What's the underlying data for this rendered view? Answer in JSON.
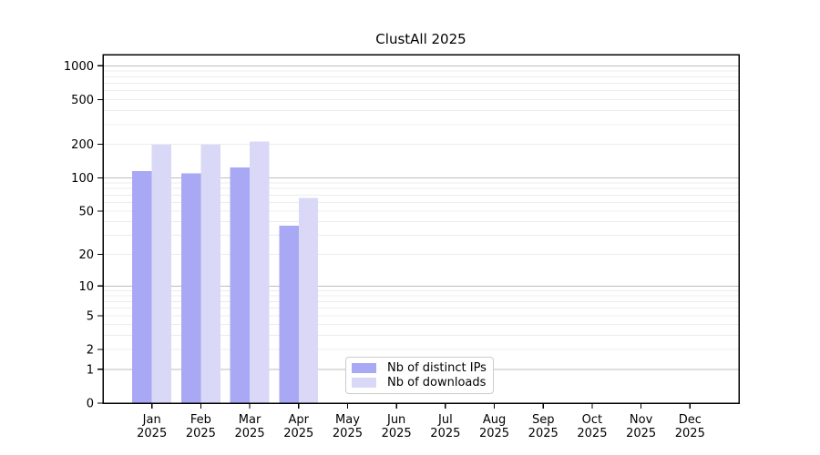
{
  "chart_data": {
    "type": "bar",
    "title": "ClustAll 2025",
    "categories": [
      "Jan",
      "Feb",
      "Mar",
      "Apr",
      "May",
      "Jun",
      "Jul",
      "Aug",
      "Sep",
      "Oct",
      "Nov",
      "Dec"
    ],
    "x_tick_year": "2025",
    "series": [
      {
        "name": "Nb of distinct IPs",
        "color": "#a8a8f4",
        "values": [
          115,
          110,
          124,
          37,
          null,
          null,
          null,
          null,
          null,
          null,
          null,
          null
        ]
      },
      {
        "name": "Nb of downloads",
        "color": "#d9d9f7",
        "values": [
          198,
          198,
          212,
          66,
          null,
          null,
          null,
          null,
          null,
          null,
          null,
          null
        ]
      }
    ],
    "y_scale": "symlog",
    "y_ticks": [
      0,
      1,
      2,
      5,
      10,
      20,
      50,
      100,
      200,
      500,
      1000
    ],
    "grid": "on",
    "legend_position": "lower center"
  },
  "colors": {
    "background": "#ffffff",
    "axis": "#000000",
    "grid_major": "#bdbdbd",
    "grid_minor": "#ececec",
    "text": "#000000",
    "legend_border": "#cccccc"
  }
}
